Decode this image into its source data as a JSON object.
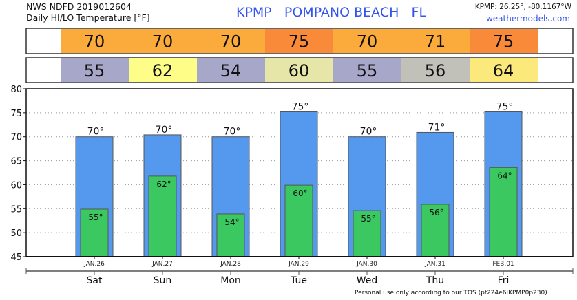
{
  "header": {
    "source": "NWS NDFD 2019012604",
    "subtitle": "Daily HI/LO Temperature [°F]",
    "station_title": "KPMP   POMPANO BEACH   FL",
    "coords": "KPMP: 26.25°, -80.1167°W",
    "site": "weathermodels.com"
  },
  "footer": "Personal use only according to our TOS (pf224e6IKPMP0p230)",
  "chart_data": {
    "type": "bar",
    "title": "Daily HI/LO Temperature [°F]",
    "ylim": [
      45,
      80
    ],
    "yticks": [
      45,
      50,
      55,
      60,
      65,
      70,
      75,
      80
    ],
    "grid": true,
    "dates": [
      "JAN.26",
      "JAN.27",
      "JAN.28",
      "JAN.29",
      "JAN.30",
      "JAN.31",
      "FEB.01"
    ],
    "days": [
      "Sat",
      "Sun",
      "Mon",
      "Tue",
      "Wed",
      "Thu",
      "Fri"
    ],
    "series": [
      {
        "name": "High",
        "color": "#5599ee",
        "values": [
          70.0,
          70.4,
          70.0,
          75.2,
          70.0,
          70.9,
          75.2
        ],
        "labels": [
          "70°",
          "70°",
          "70°",
          "75°",
          "70°",
          "71°",
          "75°"
        ]
      },
      {
        "name": "Low",
        "color": "#3cc860",
        "values": [
          54.9,
          61.8,
          53.9,
          59.9,
          54.6,
          55.9,
          63.6
        ],
        "labels": [
          "55°",
          "62°",
          "54°",
          "60°",
          "55°",
          "56°",
          "64°"
        ]
      }
    ],
    "hi_table": {
      "values": [
        "70",
        "70",
        "70",
        "75",
        "70",
        "71",
        "75"
      ],
      "colors": [
        "#fbab3b",
        "#fbab3b",
        "#fbab3b",
        "#f98a3a",
        "#fbab3b",
        "#fbab3b",
        "#f98a3a"
      ]
    },
    "lo_table": {
      "values": [
        "55",
        "62",
        "54",
        "60",
        "55",
        "56",
        "64"
      ],
      "colors": [
        "#a7a7c9",
        "#fdfd88",
        "#a7a7c9",
        "#e6e6a9",
        "#a7a7c9",
        "#c1c1ba",
        "#fbe97b"
      ]
    }
  }
}
